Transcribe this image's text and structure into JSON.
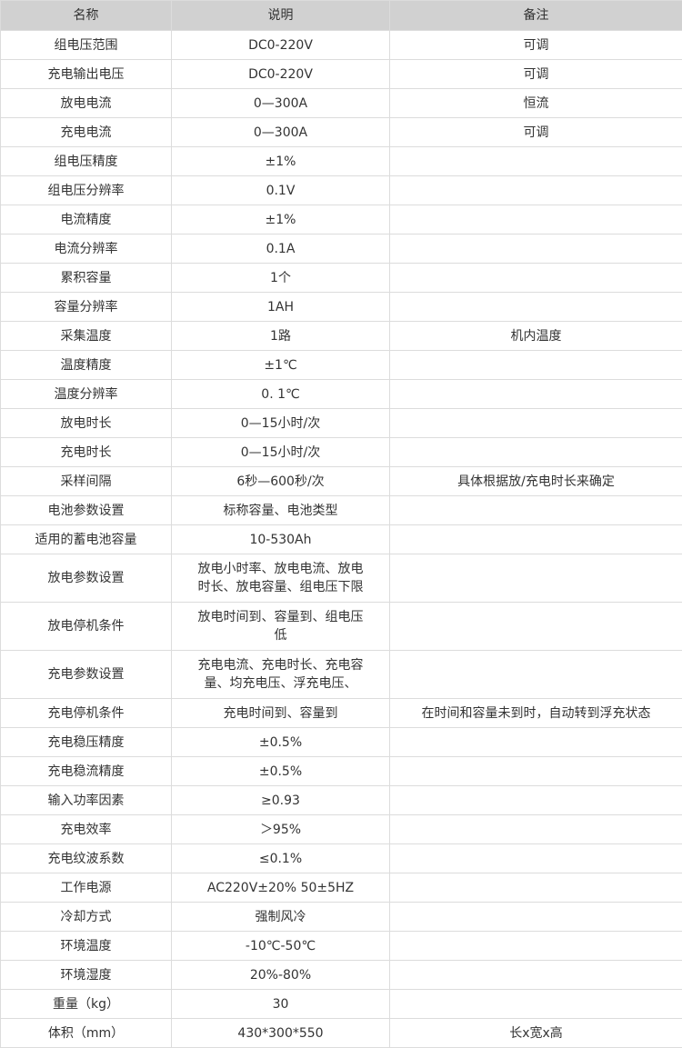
{
  "header": [
    "名称",
    "说明",
    "备注"
  ],
  "rows": [
    [
      "组电压范围",
      "DC0-220V",
      "可调"
    ],
    [
      "充电输出电压",
      "DC0-220V",
      "可调"
    ],
    [
      "放电电流",
      "0—300A",
      "恒流"
    ],
    [
      "充电电流",
      "0—300A",
      "可调"
    ],
    [
      "组电压精度",
      "±1%",
      ""
    ],
    [
      "组电压分辨率",
      "0.1V",
      ""
    ],
    [
      "电流精度",
      "±1%",
      ""
    ],
    [
      "电流分辨率",
      "0.1A",
      ""
    ],
    [
      "累积容量",
      "1个",
      ""
    ],
    [
      "容量分辨率",
      "1AH",
      ""
    ],
    [
      "采集温度",
      "1路",
      "机内温度"
    ],
    [
      "温度精度",
      "±1℃",
      ""
    ],
    [
      "温度分辨率",
      "0. 1℃",
      ""
    ],
    [
      "放电时长",
      "0—15小时/次",
      ""
    ],
    [
      "充电时长",
      "0—15小时/次",
      ""
    ],
    [
      "采样间隔",
      "6秒—600秒/次",
      "具体根据放/充电时长来确定"
    ],
    [
      "电池参数设置",
      "标称容量、电池类型",
      ""
    ],
    [
      "适用的蓄电池容量",
      "10-530Ah",
      ""
    ],
    [
      "放电参数设置",
      "放电小时率、放电电流、放电\n时长、放电容量、组电压下限",
      ""
    ],
    [
      "放电停机条件",
      "放电时间到、容量到、组电压\n低",
      ""
    ],
    [
      "充电参数设置",
      "充电电流、充电时长、充电容\n量、均充电压、浮充电压、",
      ""
    ],
    [
      "充电停机条件",
      "充电时间到、容量到",
      "在时间和容量未到时，自动转到浮充状态"
    ],
    [
      "充电稳压精度",
      "±0.5%",
      ""
    ],
    [
      "充电稳流精度",
      "±0.5%",
      ""
    ],
    [
      "输入功率因素",
      "≥0.93",
      ""
    ],
    [
      "充电效率",
      "＞95%",
      ""
    ],
    [
      "充电纹波系数",
      "≤0.1%",
      ""
    ],
    [
      "工作电源",
      "AC220V±20%  50±5HZ",
      ""
    ],
    [
      "冷却方式",
      "强制风冷",
      ""
    ],
    [
      "环境温度",
      "-10℃-50℃",
      ""
    ],
    [
      "环境湿度",
      "20%-80%",
      ""
    ],
    [
      "重量（kg）",
      "30",
      ""
    ],
    [
      "体积（mm）",
      "430*300*550",
      "长x宽x高"
    ]
  ],
  "colors": {
    "header_bg": "#d1d1d1",
    "border": "#dcdcdc",
    "text": "#333333"
  }
}
